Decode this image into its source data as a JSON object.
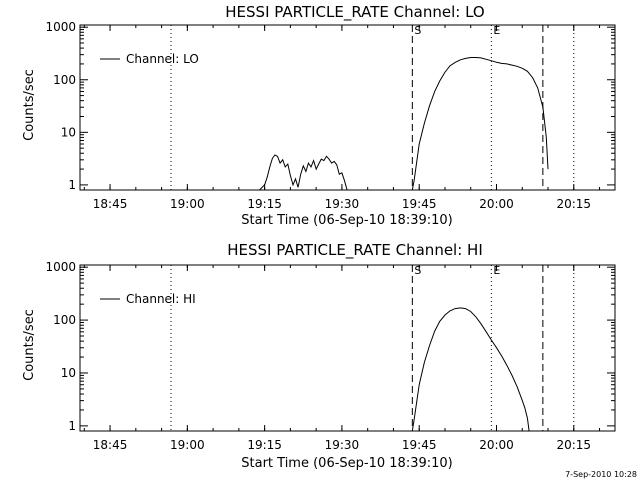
{
  "footer_stamp": "7-Sep-2010 10:28",
  "chart_data": [
    {
      "type": "line",
      "title": "HESSI PARTICLE_RATE Channel: LO",
      "xlabel": "Start Time (06-Sep-10 18:39:10)",
      "ylabel": "Counts/sec",
      "yscale": "log",
      "xlim": [
        "18:39:10",
        "20:23:00"
      ],
      "ylim": [
        0.8,
        1100
      ],
      "xticks": [
        "18:45",
        "19:00",
        "19:15",
        "19:30",
        "19:45",
        "20:00",
        "20:15"
      ],
      "yticks": [
        "1",
        "10",
        "100",
        "1000"
      ],
      "legend": {
        "position": "top-left",
        "entries": [
          "Channel: LO"
        ]
      },
      "markers": {
        "start_label": "S",
        "end_label": "E"
      },
      "dashed_lines": [
        "19:43:40",
        "20:09:00"
      ],
      "dotted_lines": [
        "18:56:50",
        "19:59:00",
        "20:15:00"
      ],
      "series": [
        {
          "name": "Channel: LO",
          "x": [
            "19:14:00",
            "19:15:00",
            "19:15:30",
            "19:16:00",
            "19:16:30",
            "19:17:00",
            "19:17:30",
            "19:18:00",
            "19:18:30",
            "19:19:00",
            "19:19:30",
            "19:20:00",
            "19:20:30",
            "19:21:00",
            "19:21:30",
            "19:22:00",
            "19:22:30",
            "19:23:00",
            "19:23:30",
            "19:24:00",
            "19:24:30",
            "19:25:00",
            "19:25:30",
            "19:26:00",
            "19:26:30",
            "19:27:00",
            "19:27:30",
            "19:28:00",
            "19:28:30",
            "19:29:00",
            "19:29:30",
            "19:30:00",
            "19:30:30",
            "19:31:00",
            "19:43:40",
            "19:44:00",
            "19:45:00",
            "19:46:00",
            "19:47:00",
            "19:48:00",
            "19:49:00",
            "19:50:00",
            "19:51:00",
            "19:52:00",
            "19:53:00",
            "19:54:00",
            "19:55:00",
            "19:56:00",
            "19:57:00",
            "19:58:00",
            "19:59:00",
            "20:00:00",
            "20:01:00",
            "20:02:00",
            "20:03:00",
            "20:04:00",
            "20:05:00",
            "20:06:00",
            "20:07:00",
            "20:08:00",
            "20:09:00",
            "20:09:40",
            "20:10:00"
          ],
          "y": [
            0.8,
            1.0,
            1.4,
            2.2,
            3.2,
            3.7,
            3.5,
            2.6,
            3.0,
            2.2,
            2.5,
            1.5,
            1.0,
            1.3,
            0.9,
            1.6,
            2.3,
            1.8,
            2.6,
            2.2,
            2.9,
            2.0,
            2.5,
            3.1,
            2.9,
            3.5,
            3.1,
            2.6,
            2.8,
            2.4,
            1.6,
            1.7,
            1.2,
            0.8,
            0.8,
            1.2,
            6,
            15,
            32,
            60,
            95,
            140,
            185,
            215,
            240,
            255,
            265,
            265,
            260,
            245,
            230,
            215,
            205,
            200,
            190,
            180,
            165,
            145,
            110,
            70,
            30,
            8,
            2
          ]
        }
      ]
    },
    {
      "type": "line",
      "title": "HESSI PARTICLE_RATE Channel: HI",
      "xlabel": "Start Time (06-Sep-10 18:39:10)",
      "ylabel": "Counts/sec",
      "yscale": "log",
      "xlim": [
        "18:39:10",
        "20:23:00"
      ],
      "ylim": [
        0.8,
        1100
      ],
      "xticks": [
        "18:45",
        "19:00",
        "19:15",
        "19:30",
        "19:45",
        "20:00",
        "20:15"
      ],
      "yticks": [
        "1",
        "10",
        "100",
        "1000"
      ],
      "legend": {
        "position": "top-left",
        "entries": [
          "Channel: HI"
        ]
      },
      "markers": {
        "start_label": "S",
        "end_label": "E"
      },
      "dashed_lines": [
        "19:43:40",
        "20:09:00"
      ],
      "dotted_lines": [
        "18:56:50",
        "19:59:00",
        "20:15:00"
      ],
      "series": [
        {
          "name": "Channel: HI",
          "x": [
            "19:43:40",
            "19:44:00",
            "19:45:00",
            "19:46:00",
            "19:47:00",
            "19:48:00",
            "19:49:00",
            "19:50:00",
            "19:51:00",
            "19:52:00",
            "19:53:00",
            "19:54:00",
            "19:55:00",
            "19:56:00",
            "19:57:00",
            "19:58:00",
            "19:59:00",
            "20:00:00",
            "20:01:00",
            "20:02:00",
            "20:03:00",
            "20:04:00",
            "20:05:00",
            "20:05:30",
            "20:06:00",
            "20:06:20"
          ],
          "y": [
            0.8,
            1.3,
            6,
            16,
            33,
            62,
            95,
            125,
            150,
            165,
            170,
            165,
            145,
            115,
            85,
            60,
            42,
            30,
            21,
            14,
            9,
            5.5,
            3,
            2.2,
            1.4,
            0.8
          ]
        }
      ]
    }
  ]
}
